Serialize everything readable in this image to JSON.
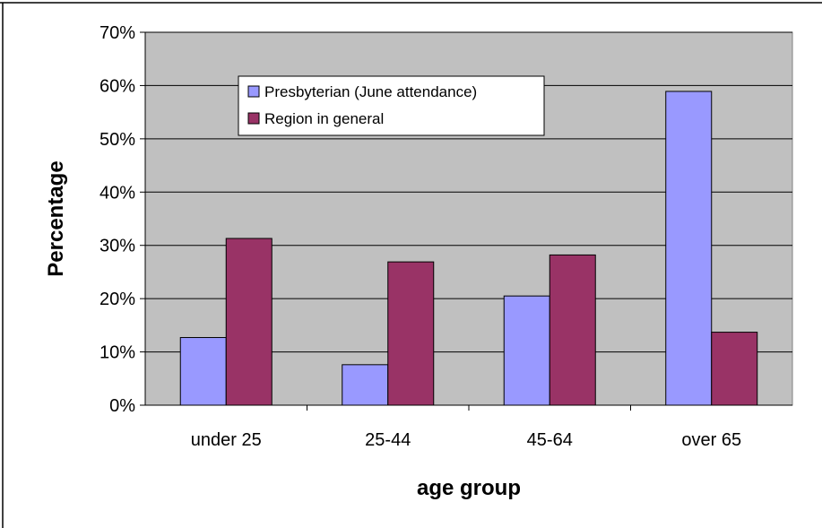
{
  "chart_data": {
    "type": "bar",
    "title": "",
    "xlabel": "age group",
    "ylabel": "Percentage",
    "categories": [
      "under 25",
      "25-44",
      "45-64",
      "over 65"
    ],
    "series": [
      {
        "name": "Presbyterian (June attendance)",
        "values": [
          12.7,
          7.6,
          20.5,
          58.9
        ],
        "color": "#9999FF"
      },
      {
        "name": "Region in general",
        "values": [
          31.3,
          26.9,
          28.2,
          13.7
        ],
        "color": "#993366"
      }
    ],
    "ylim": [
      0,
      70
    ],
    "yticks": [
      0,
      10,
      20,
      30,
      40,
      50,
      60,
      70
    ],
    "ytick_labels": [
      "0%",
      "10%",
      "20%",
      "30%",
      "40%",
      "50%",
      "60%",
      "70%"
    ],
    "grid": true,
    "plot_background": "#C0C0C0",
    "legend_position": "top-center"
  }
}
